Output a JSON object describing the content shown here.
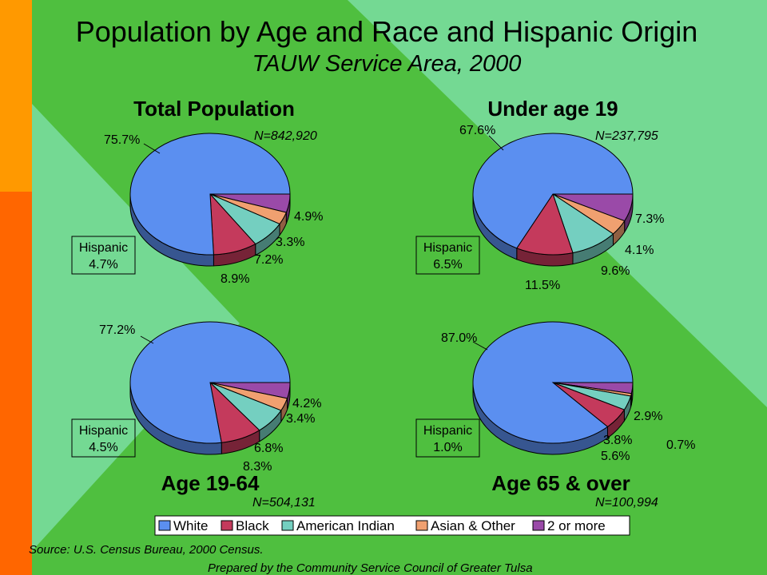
{
  "slide": {
    "title": "Population by Age and Race and Hispanic Origin",
    "subtitle": "TAUW Service Area, 2000",
    "source": "Source:  U.S. Census Bureau, 2000 Census.",
    "prepared_by": "Prepared by the Community Service Council of Greater Tulsa"
  },
  "colors": {
    "background": "#4fbf3f",
    "diamond": "#74d993",
    "bar_orange": "#ff9900",
    "bar_red": "#ff6600"
  },
  "legend": {
    "items": [
      {
        "label": "White",
        "color": "#5b8ff0"
      },
      {
        "label": "Black",
        "color": "#c43a5c"
      },
      {
        "label": "American Indian",
        "color": "#74cfc0"
      },
      {
        "label": "Asian & Other",
        "color": "#f0a070"
      },
      {
        "label": "2 or more",
        "color": "#9a4aa8"
      }
    ]
  },
  "chart_data": [
    {
      "type": "pie",
      "title": "Total Population",
      "n_label": "N=842,920",
      "categories": [
        "White",
        "Black",
        "American Indian",
        "Asian & Other",
        "2 or more"
      ],
      "values": [
        75.7,
        8.9,
        7.2,
        3.3,
        4.9
      ],
      "labels": [
        "75.7%",
        "8.9%",
        "7.2%",
        "3.3%",
        "4.9%"
      ],
      "hispanic_label": "Hispanic",
      "hispanic_value": "4.7%"
    },
    {
      "type": "pie",
      "title": "Under age 19",
      "n_label": "N=237,795",
      "categories": [
        "White",
        "Black",
        "American Indian",
        "Asian & Other",
        "2 or more"
      ],
      "values": [
        67.6,
        11.5,
        9.6,
        4.1,
        7.3
      ],
      "labels": [
        "67.6%",
        "11.5%",
        "9.6%",
        "4.1%",
        "7.3%"
      ],
      "hispanic_label": "Hispanic",
      "hispanic_value": "6.5%"
    },
    {
      "type": "pie",
      "title": "Age 19-64",
      "n_label": "N=504,131",
      "categories": [
        "White",
        "Black",
        "American Indian",
        "Asian & Other",
        "2 or more"
      ],
      "values": [
        77.2,
        8.3,
        6.8,
        3.4,
        4.2
      ],
      "labels": [
        "77.2%",
        "8.3%",
        "6.8%",
        "3.4%",
        "4.2%"
      ],
      "hispanic_label": "Hispanic",
      "hispanic_value": "4.5%"
    },
    {
      "type": "pie",
      "title": "Age 65 & over",
      "n_label": "N=100,994",
      "categories": [
        "White",
        "Black",
        "American Indian",
        "Asian & Other",
        "2 or more"
      ],
      "values": [
        87.0,
        5.6,
        3.8,
        0.7,
        2.9
      ],
      "labels": [
        "87.0%",
        "5.6%",
        "3.8%",
        "0.7%",
        "2.9%"
      ],
      "hispanic_label": "Hispanic",
      "hispanic_value": "1.0%"
    }
  ]
}
